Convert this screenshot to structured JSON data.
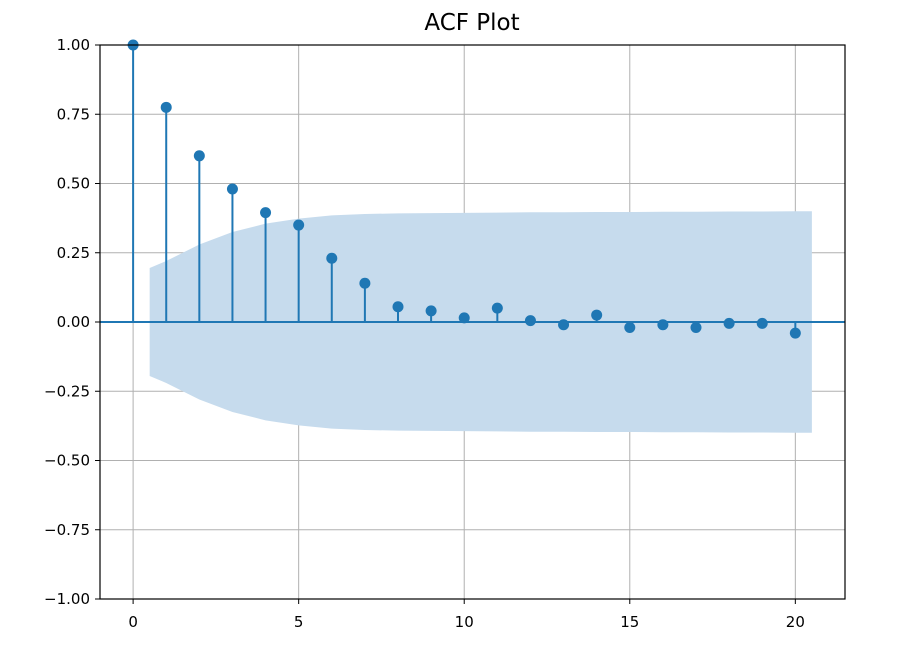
{
  "chart_data": {
    "type": "stem",
    "title": "ACF Plot",
    "xlabel": "",
    "ylabel": "",
    "xlim": [
      -1,
      21.5
    ],
    "ylim": [
      -1.0,
      1.0
    ],
    "xticks": [
      0,
      5,
      10,
      15,
      20
    ],
    "yticks": [
      -1.0,
      -0.75,
      -0.5,
      -0.25,
      0.0,
      0.25,
      0.5,
      0.75,
      1.0
    ],
    "ytick_labels": [
      "−1.00",
      "−0.75",
      "−0.50",
      "−0.25",
      "0.00",
      "0.25",
      "0.50",
      "0.75",
      "1.00"
    ],
    "xtick_labels": [
      "0",
      "5",
      "10",
      "15",
      "20"
    ],
    "grid": true,
    "colors": {
      "marker": "#1f77b4",
      "confidence_band": "#c6dbed",
      "grid": "#b0b0b0"
    },
    "lags": [
      0,
      1,
      2,
      3,
      4,
      5,
      6,
      7,
      8,
      9,
      10,
      11,
      12,
      13,
      14,
      15,
      16,
      17,
      18,
      19,
      20
    ],
    "acf": [
      1.0,
      0.775,
      0.6,
      0.48,
      0.395,
      0.35,
      0.23,
      0.14,
      0.055,
      0.04,
      0.015,
      0.05,
      0.005,
      -0.01,
      0.025,
      -0.02,
      -0.01,
      -0.02,
      -0.005,
      -0.005,
      -0.04
    ],
    "confidence_band": {
      "lag": [
        0.5,
        1,
        2,
        3,
        4,
        5,
        6,
        7,
        8,
        9,
        10,
        11,
        12,
        13,
        14,
        15,
        16,
        17,
        18,
        19,
        20,
        20.5
      ],
      "upper": [
        0.195,
        0.22,
        0.28,
        0.325,
        0.355,
        0.373,
        0.385,
        0.39,
        0.392,
        0.393,
        0.394,
        0.395,
        0.396,
        0.396,
        0.397,
        0.397,
        0.398,
        0.398,
        0.399,
        0.399,
        0.4,
        0.4
      ]
    }
  }
}
